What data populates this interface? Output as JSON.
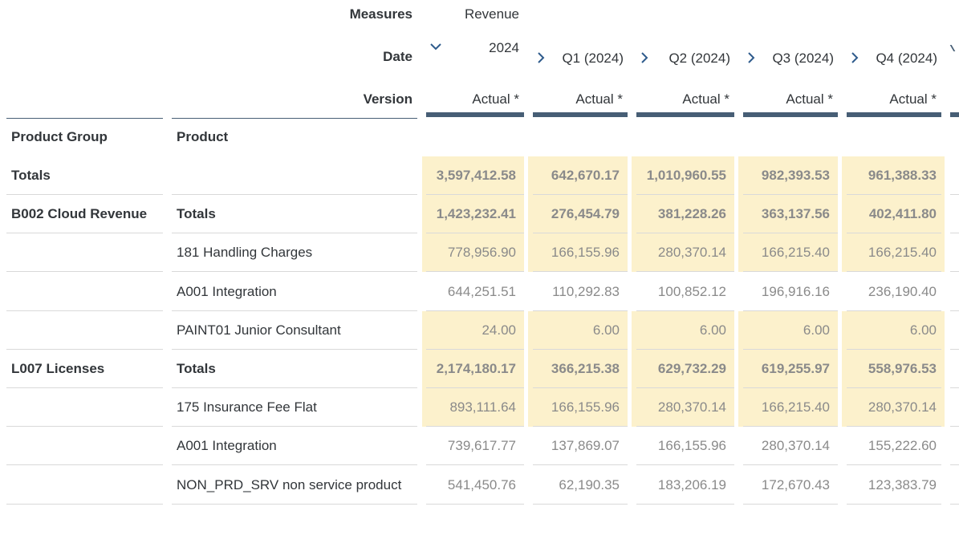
{
  "header": {
    "measures_label": "Measures",
    "measure_value": "Revenue",
    "date_label": "Date",
    "version_label": "Version",
    "dimension_headers": [
      "Product Group",
      "Product"
    ],
    "columns": [
      {
        "date": "2024",
        "expand": "collapse",
        "version": "Actual *"
      },
      {
        "date": "Q1 (2024)",
        "expand": "expand",
        "version": "Actual *"
      },
      {
        "date": "Q2 (2024)",
        "expand": "expand",
        "version": "Actual *"
      },
      {
        "date": "Q3 (2024)",
        "expand": "expand",
        "version": "Actual *"
      },
      {
        "date": "Q4 (2024)",
        "expand": "expand",
        "version": "Actual *"
      }
    ]
  },
  "rows": [
    {
      "group": "Totals",
      "product": "",
      "bold": true,
      "values": [
        "3,597,412.58",
        "642,670.17",
        "1,010,960.55",
        "982,393.53",
        "961,388.33"
      ],
      "highlight": true
    },
    {
      "group": "B002 Cloud Revenue",
      "product": "Totals",
      "bold": true,
      "values": [
        "1,423,232.41",
        "276,454.79",
        "381,228.26",
        "363,137.56",
        "402,411.80"
      ],
      "highlight": true
    },
    {
      "group": "",
      "product": "181 Handling Charges",
      "bold": false,
      "values": [
        "778,956.90",
        "166,155.96",
        "280,370.14",
        "166,215.40",
        "166,215.40"
      ],
      "highlight": true
    },
    {
      "group": "",
      "product": "A001 Integration",
      "bold": false,
      "values": [
        "644,251.51",
        "110,292.83",
        "100,852.12",
        "196,916.16",
        "236,190.40"
      ],
      "highlight": false
    },
    {
      "group": "",
      "product": "PAINT01 Junior Consultant",
      "bold": false,
      "values": [
        "24.00",
        "6.00",
        "6.00",
        "6.00",
        "6.00"
      ],
      "highlight": true
    },
    {
      "group": "L007 Licenses",
      "product": "Totals",
      "bold": true,
      "values": [
        "2,174,180.17",
        "366,215.38",
        "629,732.29",
        "619,255.97",
        "558,976.53"
      ],
      "highlight": true
    },
    {
      "group": "",
      "product": "175 Insurance Fee Flat",
      "bold": false,
      "values": [
        "893,111.64",
        "166,155.96",
        "280,370.14",
        "166,215.40",
        "280,370.14"
      ],
      "highlight": true
    },
    {
      "group": "",
      "product": "A001 Integration",
      "bold": false,
      "values": [
        "739,617.77",
        "137,869.07",
        "166,155.96",
        "280,370.14",
        "155,222.60"
      ],
      "highlight": false
    },
    {
      "group": "",
      "product": "NON_PRD_SRV non service product",
      "bold": false,
      "values": [
        "541,450.76",
        "62,190.35",
        "183,206.19",
        "172,670.43",
        "123,383.79"
      ],
      "highlight": false
    }
  ],
  "colors": {
    "highlight": "#fcf1cc",
    "header_bar": "#475e75",
    "chevron": "#2f5b8c"
  }
}
